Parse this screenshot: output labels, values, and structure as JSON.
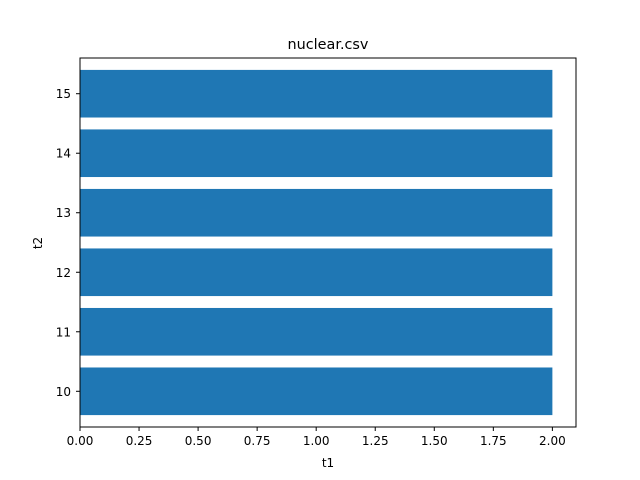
{
  "chart_data": {
    "type": "bar",
    "orientation": "horizontal",
    "title": "nuclear.csv",
    "xlabel": "t1",
    "ylabel": "t2",
    "categories": [
      "10",
      "11",
      "12",
      "13",
      "14",
      "15"
    ],
    "values": [
      2.0,
      2.0,
      2.0,
      2.0,
      2.0,
      2.0
    ],
    "xlim": [
      0,
      2.1
    ],
    "ylim": [
      9.4,
      15.6
    ],
    "xticks": [
      "0.00",
      "0.25",
      "0.50",
      "0.75",
      "1.00",
      "1.25",
      "1.50",
      "1.75",
      "2.00"
    ],
    "yticks": [
      "10",
      "11",
      "12",
      "13",
      "14",
      "15"
    ],
    "grid": false,
    "bar_color": "#1f77b4"
  }
}
